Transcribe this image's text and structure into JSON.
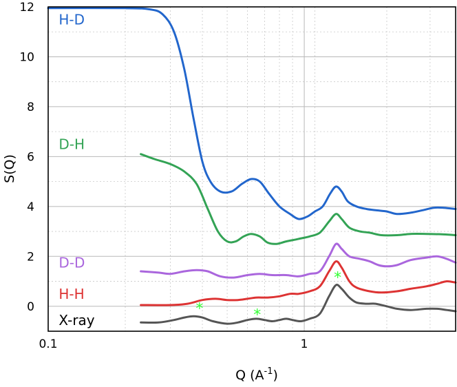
{
  "chart_data": {
    "type": "line",
    "title": "",
    "xlabel": "Q (A-1)",
    "xlabel_main": "Q (A",
    "xlabel_sup": "-1",
    "xlabel_close": ")",
    "ylabel": "S(Q)",
    "xscale": "log",
    "xlim": [
      0.1,
      3.9
    ],
    "ylim": [
      -1,
      12
    ],
    "x_ticks": [
      {
        "v": 0.1,
        "label": "0.1"
      },
      {
        "v": 1,
        "label": "1"
      }
    ],
    "y_ticks": [
      {
        "v": 0,
        "label": "0"
      },
      {
        "v": 2,
        "label": "2"
      },
      {
        "v": 4,
        "label": "4"
      },
      {
        "v": 6,
        "label": "6"
      },
      {
        "v": 8,
        "label": "8"
      },
      {
        "v": 10,
        "label": "10"
      },
      {
        "v": 12,
        "label": "12"
      }
    ],
    "grid": true,
    "series": [
      {
        "name": "H-D",
        "color": "#2266cc",
        "points": [
          [
            0.1,
            11.95
          ],
          [
            0.2,
            11.95
          ],
          [
            0.25,
            11.9
          ],
          [
            0.28,
            11.7
          ],
          [
            0.31,
            11.0
          ],
          [
            0.34,
            9.5
          ],
          [
            0.37,
            7.5
          ],
          [
            0.4,
            5.8
          ],
          [
            0.43,
            5.0
          ],
          [
            0.47,
            4.6
          ],
          [
            0.52,
            4.6
          ],
          [
            0.57,
            4.9
          ],
          [
            0.62,
            5.1
          ],
          [
            0.67,
            5.0
          ],
          [
            0.73,
            4.5
          ],
          [
            0.8,
            4.0
          ],
          [
            0.88,
            3.7
          ],
          [
            0.95,
            3.5
          ],
          [
            1.03,
            3.6
          ],
          [
            1.1,
            3.8
          ],
          [
            1.18,
            4.0
          ],
          [
            1.26,
            4.5
          ],
          [
            1.33,
            4.8
          ],
          [
            1.4,
            4.6
          ],
          [
            1.48,
            4.2
          ],
          [
            1.6,
            4.0
          ],
          [
            1.75,
            3.9
          ],
          [
            1.9,
            3.85
          ],
          [
            2.1,
            3.8
          ],
          [
            2.3,
            3.7
          ],
          [
            2.6,
            3.75
          ],
          [
            2.9,
            3.85
          ],
          [
            3.2,
            3.95
          ],
          [
            3.5,
            3.95
          ],
          [
            3.9,
            3.9
          ]
        ]
      },
      {
        "name": "D-H",
        "color": "#33a355",
        "points": [
          [
            0.23,
            6.1
          ],
          [
            0.26,
            5.9
          ],
          [
            0.3,
            5.7
          ],
          [
            0.34,
            5.4
          ],
          [
            0.38,
            4.9
          ],
          [
            0.42,
            3.9
          ],
          [
            0.46,
            3.0
          ],
          [
            0.5,
            2.6
          ],
          [
            0.54,
            2.6
          ],
          [
            0.58,
            2.8
          ],
          [
            0.62,
            2.9
          ],
          [
            0.67,
            2.8
          ],
          [
            0.72,
            2.55
          ],
          [
            0.78,
            2.5
          ],
          [
            0.85,
            2.6
          ],
          [
            0.95,
            2.7
          ],
          [
            1.05,
            2.8
          ],
          [
            1.15,
            2.95
          ],
          [
            1.25,
            3.4
          ],
          [
            1.33,
            3.7
          ],
          [
            1.4,
            3.5
          ],
          [
            1.5,
            3.15
          ],
          [
            1.65,
            3.0
          ],
          [
            1.8,
            2.95
          ],
          [
            2.0,
            2.85
          ],
          [
            2.3,
            2.85
          ],
          [
            2.6,
            2.9
          ],
          [
            3.0,
            2.9
          ],
          [
            3.5,
            2.88
          ],
          [
            3.9,
            2.85
          ]
        ]
      },
      {
        "name": "D-D",
        "color": "#aa66dd",
        "points": [
          [
            0.23,
            1.4
          ],
          [
            0.27,
            1.35
          ],
          [
            0.3,
            1.3
          ],
          [
            0.34,
            1.4
          ],
          [
            0.38,
            1.45
          ],
          [
            0.42,
            1.4
          ],
          [
            0.47,
            1.2
          ],
          [
            0.53,
            1.15
          ],
          [
            0.6,
            1.25
          ],
          [
            0.67,
            1.3
          ],
          [
            0.75,
            1.25
          ],
          [
            0.85,
            1.25
          ],
          [
            0.95,
            1.2
          ],
          [
            1.05,
            1.3
          ],
          [
            1.15,
            1.4
          ],
          [
            1.25,
            2.0
          ],
          [
            1.33,
            2.5
          ],
          [
            1.4,
            2.3
          ],
          [
            1.5,
            2.0
          ],
          [
            1.65,
            1.9
          ],
          [
            1.8,
            1.8
          ],
          [
            1.95,
            1.65
          ],
          [
            2.1,
            1.6
          ],
          [
            2.3,
            1.65
          ],
          [
            2.6,
            1.85
          ],
          [
            3.0,
            1.95
          ],
          [
            3.3,
            2.0
          ],
          [
            3.6,
            1.9
          ],
          [
            3.9,
            1.75
          ]
        ]
      },
      {
        "name": "H-H",
        "color": "#dd3333",
        "points": [
          [
            0.23,
            0.05
          ],
          [
            0.3,
            0.05
          ],
          [
            0.35,
            0.1
          ],
          [
            0.4,
            0.25
          ],
          [
            0.45,
            0.3
          ],
          [
            0.5,
            0.25
          ],
          [
            0.55,
            0.25
          ],
          [
            0.6,
            0.3
          ],
          [
            0.65,
            0.35
          ],
          [
            0.72,
            0.35
          ],
          [
            0.8,
            0.4
          ],
          [
            0.88,
            0.5
          ],
          [
            0.95,
            0.5
          ],
          [
            1.05,
            0.6
          ],
          [
            1.15,
            0.8
          ],
          [
            1.25,
            1.4
          ],
          [
            1.33,
            1.8
          ],
          [
            1.4,
            1.55
          ],
          [
            1.5,
            1.0
          ],
          [
            1.6,
            0.75
          ],
          [
            1.8,
            0.6
          ],
          [
            2.0,
            0.55
          ],
          [
            2.3,
            0.6
          ],
          [
            2.6,
            0.7
          ],
          [
            3.0,
            0.8
          ],
          [
            3.3,
            0.9
          ],
          [
            3.6,
            1.0
          ],
          [
            3.9,
            0.95
          ]
        ]
      },
      {
        "name": "X-ray",
        "color": "#555555",
        "points": [
          [
            0.23,
            -0.65
          ],
          [
            0.27,
            -0.65
          ],
          [
            0.31,
            -0.55
          ],
          [
            0.34,
            -0.45
          ],
          [
            0.37,
            -0.4
          ],
          [
            0.4,
            -0.45
          ],
          [
            0.44,
            -0.6
          ],
          [
            0.5,
            -0.7
          ],
          [
            0.55,
            -0.65
          ],
          [
            0.6,
            -0.55
          ],
          [
            0.65,
            -0.5
          ],
          [
            0.7,
            -0.55
          ],
          [
            0.75,
            -0.6
          ],
          [
            0.8,
            -0.55
          ],
          [
            0.85,
            -0.5
          ],
          [
            0.9,
            -0.55
          ],
          [
            0.97,
            -0.6
          ],
          [
            1.05,
            -0.5
          ],
          [
            1.15,
            -0.3
          ],
          [
            1.25,
            0.4
          ],
          [
            1.33,
            0.85
          ],
          [
            1.4,
            0.7
          ],
          [
            1.5,
            0.35
          ],
          [
            1.6,
            0.15
          ],
          [
            1.75,
            0.1
          ],
          [
            1.9,
            0.1
          ],
          [
            2.1,
            0.0
          ],
          [
            2.3,
            -0.1
          ],
          [
            2.6,
            -0.15
          ],
          [
            3.0,
            -0.1
          ],
          [
            3.3,
            -0.1
          ],
          [
            3.6,
            -0.15
          ],
          [
            3.9,
            -0.2
          ]
        ]
      }
    ],
    "series_labels": [
      {
        "text": "H-D",
        "color": "#2266cc",
        "x": 0.11,
        "y": 11.3
      },
      {
        "text": "D-H",
        "color": "#33a355",
        "x": 0.11,
        "y": 6.3
      },
      {
        "text": "D-D",
        "color": "#aa66dd",
        "x": 0.11,
        "y": 1.55
      },
      {
        "text": "H-H",
        "color": "#dd3333",
        "x": 0.11,
        "y": 0.3
      },
      {
        "text": "X-ray",
        "color": "#000000",
        "x": 0.11,
        "y": -0.75
      }
    ],
    "annotations": [
      {
        "text": "*",
        "color": "#33ff33",
        "x": 0.39,
        "y": -0.05
      },
      {
        "text": "*",
        "color": "#33ff33",
        "x": 0.655,
        "y": -0.3
      },
      {
        "text": "*",
        "color": "#33ff33",
        "x": 1.35,
        "y": 1.2
      }
    ]
  }
}
